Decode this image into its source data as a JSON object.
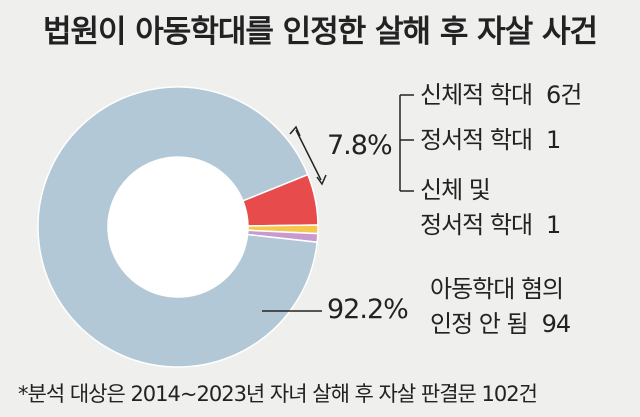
{
  "title": "법원이 아동학대를 인정한 살해 후 자살 사건",
  "note": "*분석 대상은 2014~2023년 자녀 살해 후 자살 판결문 102건",
  "chart_data": {
    "type": "pie",
    "total": 102,
    "group_label": "7.8%",
    "slices": [
      {
        "label": "아동학대 혐의 인정 안 됨",
        "label_lines": [
          "아동학대 혐의",
          "인정 안 됨"
        ],
        "value": 94,
        "value_label": "94",
        "percent_label": "92.2%",
        "color": "#b3c8d6"
      },
      {
        "label": "신체적 학대",
        "label_lines": [
          "신체적 학대"
        ],
        "value": 6,
        "value_label": "6건",
        "color": "#e84b4b"
      },
      {
        "label": "정서적 학대",
        "label_lines": [
          "정서적 학대"
        ],
        "value": 1,
        "value_label": "1",
        "color": "#f5c74a"
      },
      {
        "label": "신체 및 정서적 학대",
        "label_lines": [
          "신체 및",
          "정서적 학대"
        ],
        "value": 1,
        "value_label": "1",
        "color": "#c99ad0"
      }
    ]
  }
}
